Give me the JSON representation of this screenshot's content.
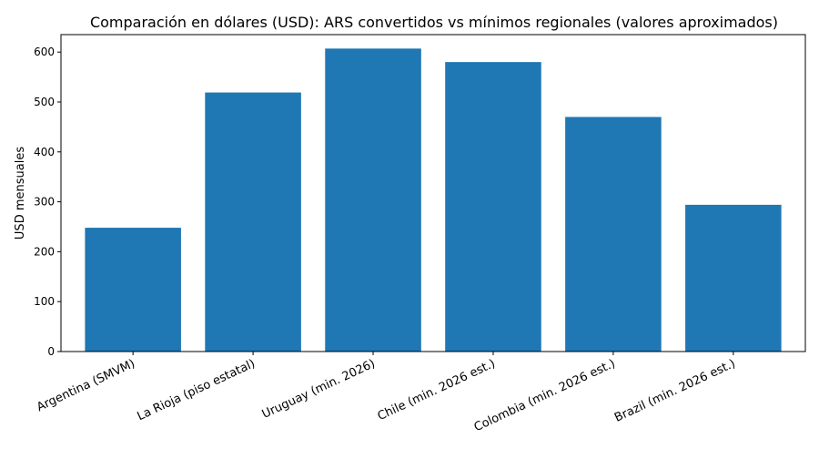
{
  "chart_data": {
    "type": "bar",
    "title": "Comparación en dólares (USD): ARS convertidos vs mínimos regionales (valores aproximados)",
    "xlabel": "",
    "ylabel": "USD mensuales",
    "categories": [
      "Argentina (SMVM)",
      "La Rioja (piso estatal)",
      "Uruguay (min. 2026)",
      "Chile (min. 2026 est.)",
      "Colombia (min. 2026 est.)",
      "Brazil (min. 2026 est.)"
    ],
    "values": [
      248,
      519,
      607,
      580,
      470,
      294
    ],
    "ylim": [
      0,
      635
    ],
    "yticks": [
      0,
      100,
      200,
      300,
      400,
      500,
      600
    ],
    "bar_color": "#1f77b4",
    "grid": false,
    "legend": "none"
  }
}
